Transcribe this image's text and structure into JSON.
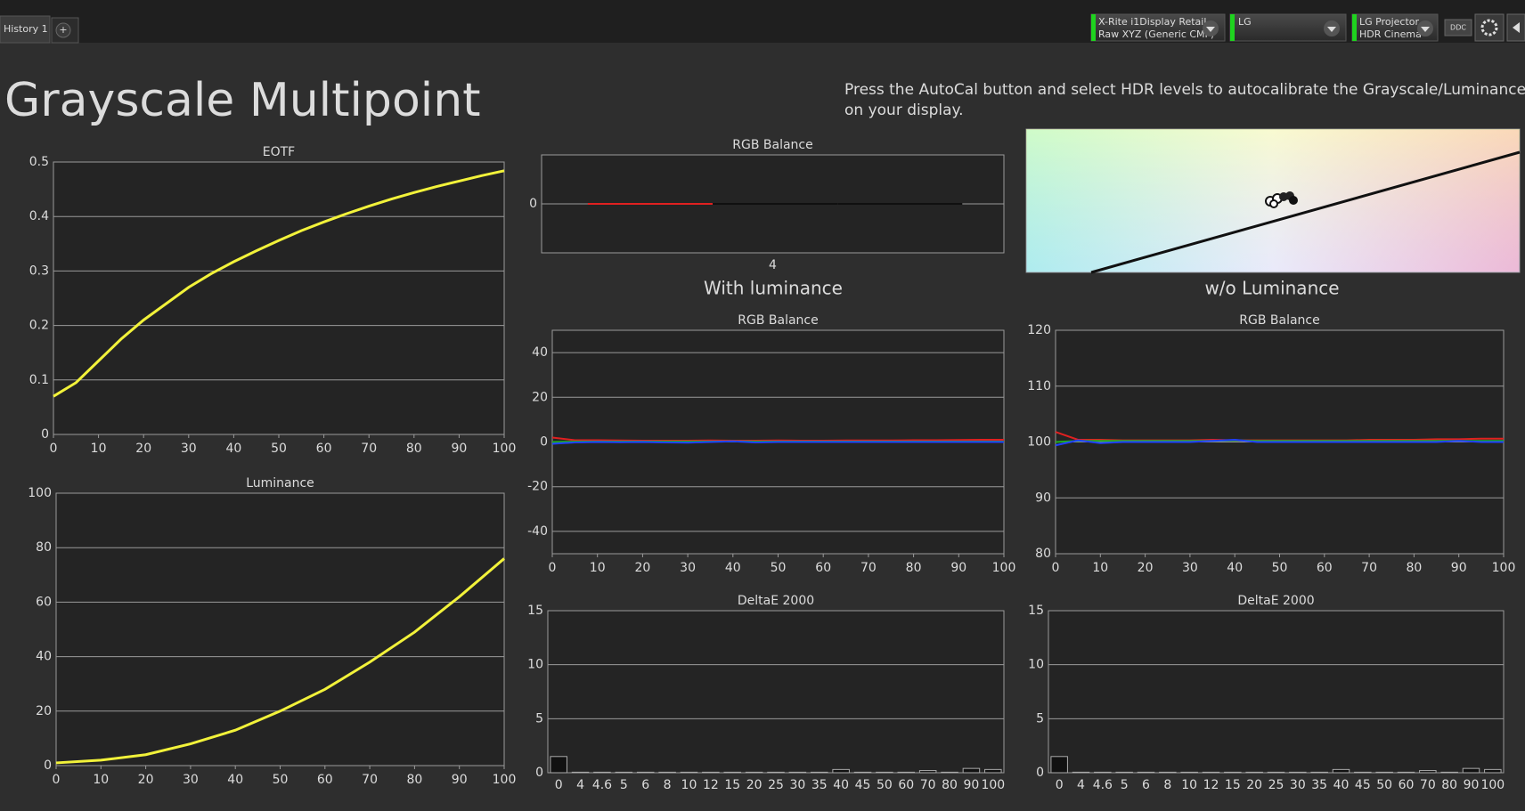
{
  "toolbar": {
    "tab": "History 1",
    "add_tab": "+",
    "devices": [
      [
        "X-Rite i1Display Retail",
        "Raw XYZ (Generic CMF)"
      ],
      [
        "LG"
      ],
      [
        "LG Projector",
        "HDR Cinema"
      ]
    ],
    "ddc": "DDC"
  },
  "title": "Grayscale Multipoint",
  "instructions": [
    "Press the AutoCal button and select HDR levels to autocalibrate the Grayscale/Luminance response",
    "on your display."
  ],
  "section_labels": [
    "With luminance",
    "w/o Luminance"
  ],
  "chart_data": [
    {
      "type": "line",
      "title": "EOTF",
      "x": [
        0,
        5,
        10,
        15,
        20,
        25,
        30,
        35,
        40,
        45,
        50,
        55,
        60,
        65,
        70,
        75,
        80,
        85,
        90,
        95,
        100
      ],
      "values": [
        0.07,
        0.095,
        0.135,
        0.175,
        0.21,
        0.24,
        0.27,
        0.295,
        0.317,
        0.337,
        0.356,
        0.374,
        0.39,
        0.405,
        0.419,
        0.432,
        0.444,
        0.455,
        0.465,
        0.475,
        0.484
      ],
      "color": "#f2f23a",
      "xlim": [
        0,
        100
      ],
      "xticks": [
        0,
        10,
        20,
        30,
        40,
        50,
        60,
        70,
        80,
        90,
        100
      ],
      "ylim": [
        0,
        0.5
      ],
      "yticks": [
        0,
        0.1,
        0.2,
        0.3,
        0.4,
        0.5
      ],
      "grid": true
    },
    {
      "type": "line",
      "title": "Luminance",
      "x": [
        0,
        10,
        20,
        30,
        40,
        50,
        60,
        70,
        80,
        90,
        100
      ],
      "values": [
        1,
        2,
        4,
        8,
        13,
        20,
        28,
        38,
        49,
        62,
        76
      ],
      "color": "#f2f23a",
      "xlim": [
        0,
        100
      ],
      "xticks": [
        0,
        10,
        20,
        30,
        40,
        50,
        60,
        70,
        80,
        90,
        100
      ],
      "ylim": [
        0,
        100
      ],
      "yticks": [
        0,
        20,
        40,
        60,
        80,
        100
      ],
      "grid": true
    },
    {
      "type": "line",
      "title": "RGB Balance",
      "categories": [
        "4"
      ],
      "series": [
        {
          "color": "#e02020",
          "values": [
            0
          ]
        },
        {
          "color": "#101010",
          "values": [
            0
          ]
        },
        {
          "color": "#101010",
          "values": [
            0
          ]
        }
      ],
      "ylim": [
        -1,
        1
      ],
      "yticks": [
        0
      ],
      "grid": true
    },
    {
      "type": "line",
      "title": "RGB Balance",
      "x": [
        0,
        5,
        10,
        15,
        20,
        25,
        30,
        35,
        40,
        45,
        50,
        55,
        60,
        65,
        70,
        75,
        80,
        85,
        90,
        95,
        100
      ],
      "series": [
        {
          "color": "#e02020",
          "values": [
            2,
            0.8,
            0.8,
            0.7,
            0.6,
            0.6,
            0.6,
            0.7,
            0.6,
            0.6,
            0.7,
            0.6,
            0.6,
            0.7,
            0.7,
            0.7,
            0.8,
            0.8,
            0.9,
            1,
            1
          ]
        },
        {
          "color": "#20b020",
          "values": [
            0,
            0.2,
            0.2,
            0.2,
            0.2,
            0.2,
            0.2,
            0.2,
            0.3,
            0.2,
            0.2,
            0.2,
            0.2,
            0.2,
            0.2,
            0.2,
            0.2,
            0.2,
            0.2,
            0.2,
            0.2
          ]
        },
        {
          "color": "#2040ff",
          "values": [
            -0.8,
            -0.2,
            0,
            -0.1,
            0,
            -0.2,
            -0.3,
            0,
            0.3,
            -0.2,
            0,
            0,
            0,
            0,
            0,
            0,
            0,
            0,
            0,
            0,
            0
          ]
        }
      ],
      "xlim": [
        0,
        100
      ],
      "xticks": [
        0,
        10,
        20,
        30,
        40,
        50,
        60,
        70,
        80,
        90,
        100
      ],
      "ylim": [
        -50,
        50
      ],
      "yticks": [
        -40,
        -20,
        0,
        20,
        40
      ],
      "grid": true
    },
    {
      "type": "line",
      "title": "RGB Balance",
      "x": [
        0,
        5,
        10,
        15,
        20,
        25,
        30,
        35,
        40,
        45,
        50,
        55,
        60,
        65,
        70,
        75,
        80,
        85,
        90,
        95,
        100
      ],
      "series": [
        {
          "color": "#e02020",
          "values": [
            101.8,
            100.4,
            100.4,
            100.3,
            100.3,
            100.3,
            100.3,
            100.4,
            100.3,
            100.3,
            100.3,
            100.3,
            100.3,
            100.3,
            100.4,
            100.4,
            100.4,
            100.5,
            100.5,
            100.6,
            100.6
          ]
        },
        {
          "color": "#20b020",
          "values": [
            100,
            100.2,
            100.2,
            100.2,
            100.2,
            100.2,
            100.2,
            100.2,
            100.3,
            100.2,
            100.2,
            100.2,
            100.2,
            100.2,
            100.2,
            100.2,
            100.2,
            100.2,
            100.2,
            100.2,
            100.2
          ]
        },
        {
          "color": "#2040ff",
          "values": [
            99.4,
            100.3,
            99.8,
            100,
            100,
            100,
            100,
            100.2,
            100.4,
            100,
            100,
            100,
            100,
            100,
            100,
            100,
            100,
            100,
            100.2,
            100,
            100
          ]
        }
      ],
      "xlim": [
        0,
        100
      ],
      "xticks": [
        0,
        10,
        20,
        30,
        40,
        50,
        60,
        70,
        80,
        90,
        100
      ],
      "ylim": [
        80,
        120
      ],
      "yticks": [
        80,
        90,
        100,
        110,
        120
      ],
      "grid": true
    },
    {
      "type": "bar",
      "title": "DeltaE 2000",
      "categories": [
        "0",
        "4",
        "4.6",
        "5",
        "6",
        "8",
        "10",
        "12",
        "15",
        "20",
        "25",
        "30",
        "35",
        "40",
        "45",
        "50",
        "60",
        "70",
        "80",
        "90",
        "100"
      ],
      "values": [
        1.5,
        0.05,
        0.05,
        0.05,
        0.05,
        0.05,
        0.05,
        0.05,
        0.05,
        0.05,
        0.05,
        0.05,
        0.05,
        0.3,
        0.05,
        0.05,
        0.05,
        0.2,
        0.05,
        0.4,
        0.3
      ],
      "color": "#111111",
      "ylim": [
        0,
        15
      ],
      "yticks": [
        0,
        5,
        10,
        15
      ],
      "grid": true
    },
    {
      "type": "bar",
      "title": "DeltaE 2000",
      "categories": [
        "0",
        "4",
        "4.6",
        "5",
        "6",
        "8",
        "10",
        "12",
        "15",
        "20",
        "25",
        "30",
        "35",
        "40",
        "45",
        "50",
        "60",
        "70",
        "80",
        "90",
        "100"
      ],
      "values": [
        1.5,
        0.05,
        0.05,
        0.05,
        0.05,
        0.05,
        0.05,
        0.05,
        0.05,
        0.05,
        0.05,
        0.05,
        0.05,
        0.3,
        0.05,
        0.05,
        0.05,
        0.2,
        0.05,
        0.4,
        0.3
      ],
      "color": "#111111",
      "ylim": [
        0,
        15
      ],
      "yticks": [
        0,
        5,
        10,
        15
      ],
      "grid": true
    }
  ]
}
